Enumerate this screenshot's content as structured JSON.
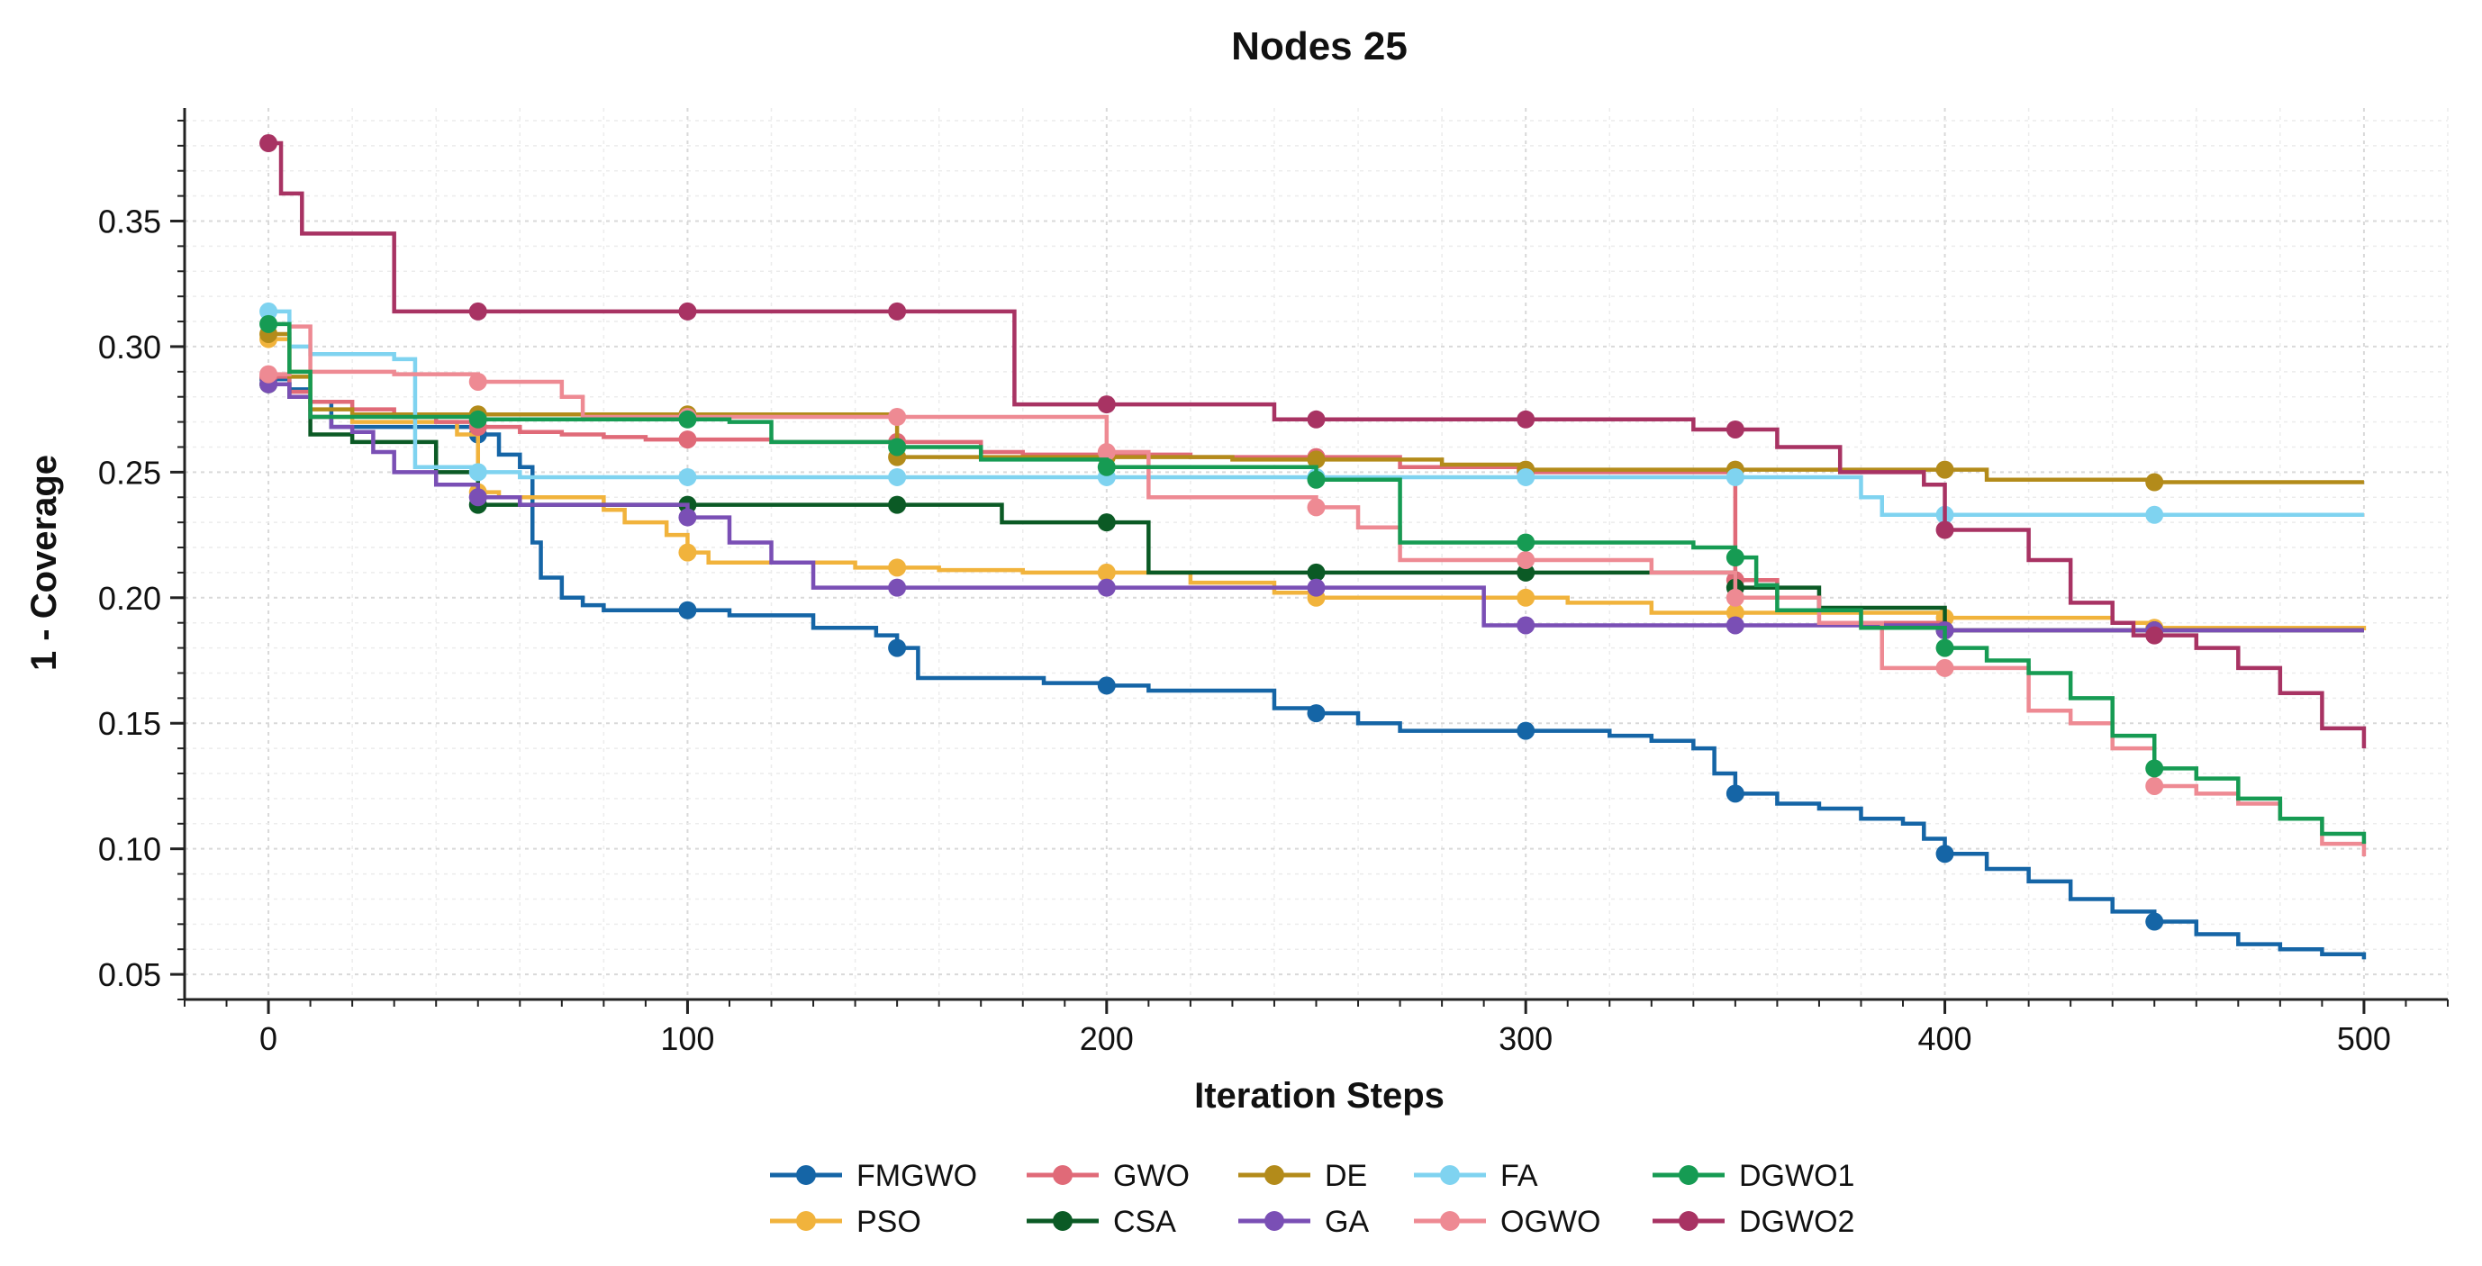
{
  "chart_data": {
    "type": "line",
    "title": "Nodes 25",
    "xlabel": "Iteration Steps",
    "ylabel": "1 - Coverage",
    "xlim": [
      -20,
      520
    ],
    "ylim": [
      0.04,
      0.395
    ],
    "xticks": [
      0,
      100,
      200,
      300,
      400,
      500
    ],
    "xtick_labels": [
      "0",
      "100",
      "200",
      "300",
      "400",
      "500"
    ],
    "yticks": [
      0.05,
      0.1,
      0.15,
      0.2,
      0.25,
      0.3,
      0.35
    ],
    "ytick_labels": [
      "0.05",
      "0.10",
      "0.15",
      "0.20",
      "0.25",
      "0.30",
      "0.35"
    ],
    "grid": true,
    "step": true,
    "marker_every": 50,
    "legend_position": "bottom-center",
    "series": [
      {
        "name": "FMGWO",
        "color": "#1565a6",
        "x": [
          0,
          5,
          10,
          15,
          50,
          55,
          60,
          63,
          65,
          70,
          75,
          80,
          90,
          100,
          110,
          120,
          130,
          140,
          145,
          150,
          155,
          170,
          185,
          200,
          210,
          225,
          240,
          250,
          260,
          270,
          300,
          320,
          330,
          340,
          345,
          350,
          360,
          370,
          380,
          390,
          395,
          400,
          410,
          420,
          430,
          440,
          450,
          460,
          470,
          480,
          490,
          500
        ],
        "y": [
          0.287,
          0.283,
          0.278,
          0.268,
          0.265,
          0.257,
          0.252,
          0.222,
          0.208,
          0.2,
          0.197,
          0.195,
          0.195,
          0.195,
          0.193,
          0.193,
          0.188,
          0.188,
          0.185,
          0.18,
          0.168,
          0.168,
          0.166,
          0.165,
          0.163,
          0.163,
          0.156,
          0.154,
          0.15,
          0.147,
          0.147,
          0.145,
          0.143,
          0.14,
          0.13,
          0.122,
          0.118,
          0.116,
          0.112,
          0.11,
          0.104,
          0.098,
          0.092,
          0.087,
          0.08,
          0.075,
          0.071,
          0.066,
          0.062,
          0.06,
          0.058,
          0.056
        ]
      },
      {
        "name": "PSO",
        "color": "#f1b33c",
        "x": [
          0,
          5,
          10,
          20,
          45,
          50,
          55,
          70,
          80,
          85,
          95,
          100,
          105,
          120,
          140,
          150,
          160,
          180,
          195,
          200,
          220,
          240,
          250,
          260,
          290,
          300,
          310,
          330,
          380,
          400,
          440,
          450,
          470,
          500
        ],
        "y": [
          0.303,
          0.29,
          0.272,
          0.27,
          0.265,
          0.242,
          0.24,
          0.24,
          0.235,
          0.23,
          0.225,
          0.218,
          0.214,
          0.214,
          0.212,
          0.212,
          0.211,
          0.21,
          0.21,
          0.21,
          0.206,
          0.202,
          0.2,
          0.2,
          0.2,
          0.2,
          0.198,
          0.194,
          0.194,
          0.192,
          0.19,
          0.188,
          0.188,
          0.187
        ]
      },
      {
        "name": "GWO",
        "color": "#e06a78",
        "x": [
          0,
          5,
          10,
          20,
          30,
          40,
          50,
          60,
          70,
          80,
          90,
          100,
          120,
          140,
          150,
          170,
          180,
          200,
          220,
          250,
          270,
          300,
          350,
          360,
          370,
          380,
          400,
          450,
          480,
          500
        ],
        "y": [
          0.288,
          0.282,
          0.278,
          0.275,
          0.272,
          0.27,
          0.268,
          0.266,
          0.265,
          0.264,
          0.263,
          0.263,
          0.262,
          0.262,
          0.262,
          0.258,
          0.257,
          0.257,
          0.256,
          0.256,
          0.252,
          0.25,
          0.207,
          0.2,
          0.195,
          0.19,
          0.187,
          0.187,
          0.187,
          0.187
        ]
      },
      {
        "name": "CSA",
        "color": "#0b5a25",
        "x": [
          0,
          5,
          10,
          20,
          40,
          50,
          55,
          70,
          100,
          120,
          150,
          160,
          175,
          200,
          210,
          225,
          250,
          280,
          300,
          330,
          350,
          370,
          400,
          450,
          500
        ],
        "y": [
          0.285,
          0.28,
          0.265,
          0.262,
          0.25,
          0.237,
          0.237,
          0.237,
          0.237,
          0.237,
          0.237,
          0.237,
          0.23,
          0.23,
          0.21,
          0.21,
          0.21,
          0.21,
          0.21,
          0.21,
          0.204,
          0.196,
          0.187,
          0.187,
          0.187
        ]
      },
      {
        "name": "DE",
        "color": "#b38b1a",
        "x": [
          0,
          5,
          10,
          20,
          50,
          100,
          150,
          170,
          200,
          230,
          250,
          280,
          300,
          330,
          350,
          390,
          400,
          410,
          440,
          450,
          470,
          500
        ],
        "y": [
          0.305,
          0.288,
          0.275,
          0.273,
          0.273,
          0.273,
          0.256,
          0.256,
          0.256,
          0.255,
          0.255,
          0.253,
          0.251,
          0.251,
          0.251,
          0.251,
          0.251,
          0.247,
          0.247,
          0.246,
          0.246,
          0.246
        ]
      },
      {
        "name": "GA",
        "color": "#7a4fb5",
        "x": [
          0,
          5,
          10,
          15,
          20,
          25,
          30,
          40,
          50,
          60,
          80,
          100,
          110,
          120,
          130,
          150,
          180,
          200,
          250,
          280,
          290,
          300,
          340,
          350,
          400,
          450,
          500
        ],
        "y": [
          0.285,
          0.28,
          0.272,
          0.268,
          0.266,
          0.258,
          0.25,
          0.245,
          0.24,
          0.237,
          0.237,
          0.232,
          0.222,
          0.214,
          0.204,
          0.204,
          0.204,
          0.204,
          0.204,
          0.204,
          0.189,
          0.189,
          0.189,
          0.189,
          0.187,
          0.187,
          0.187
        ]
      },
      {
        "name": "FA",
        "color": "#7fd3f0",
        "x": [
          0,
          5,
          10,
          20,
          30,
          35,
          40,
          50,
          60,
          100,
          150,
          200,
          250,
          300,
          350,
          380,
          385,
          400,
          450,
          500
        ],
        "y": [
          0.314,
          0.3,
          0.297,
          0.297,
          0.295,
          0.252,
          0.252,
          0.25,
          0.248,
          0.248,
          0.248,
          0.248,
          0.248,
          0.248,
          0.248,
          0.24,
          0.233,
          0.233,
          0.233,
          0.233
        ]
      },
      {
        "name": "OGWO",
        "color": "#ee8a93",
        "x": [
          0,
          5,
          10,
          30,
          50,
          60,
          70,
          75,
          100,
          150,
          200,
          210,
          240,
          250,
          260,
          270,
          300,
          330,
          350,
          370,
          385,
          400,
          410,
          420,
          430,
          440,
          450,
          460,
          470,
          480,
          490,
          500
        ],
        "y": [
          0.289,
          0.308,
          0.29,
          0.289,
          0.286,
          0.286,
          0.28,
          0.272,
          0.272,
          0.272,
          0.258,
          0.24,
          0.24,
          0.236,
          0.228,
          0.215,
          0.215,
          0.21,
          0.2,
          0.19,
          0.172,
          0.172,
          0.172,
          0.155,
          0.15,
          0.14,
          0.125,
          0.122,
          0.118,
          0.112,
          0.102,
          0.097
        ]
      },
      {
        "name": "DGWO1",
        "color": "#169b53",
        "x": [
          0,
          5,
          10,
          50,
          100,
          110,
          120,
          150,
          170,
          200,
          250,
          270,
          300,
          340,
          350,
          355,
          360,
          380,
          400,
          410,
          420,
          430,
          440,
          450,
          460,
          470,
          480,
          490,
          500
        ],
        "y": [
          0.309,
          0.29,
          0.272,
          0.271,
          0.271,
          0.27,
          0.262,
          0.26,
          0.255,
          0.252,
          0.247,
          0.222,
          0.222,
          0.22,
          0.216,
          0.205,
          0.195,
          0.188,
          0.18,
          0.175,
          0.17,
          0.16,
          0.145,
          0.132,
          0.128,
          0.12,
          0.112,
          0.106,
          0.102
        ]
      },
      {
        "name": "DGWO2",
        "color": "#a83363",
        "x": [
          0,
          3,
          8,
          30,
          50,
          100,
          150,
          178,
          200,
          240,
          250,
          300,
          340,
          350,
          360,
          375,
          395,
          400,
          420,
          430,
          440,
          445,
          450,
          460,
          470,
          480,
          490,
          500
        ],
        "y": [
          0.381,
          0.361,
          0.345,
          0.314,
          0.314,
          0.314,
          0.314,
          0.277,
          0.277,
          0.271,
          0.271,
          0.271,
          0.267,
          0.267,
          0.26,
          0.25,
          0.245,
          0.227,
          0.215,
          0.198,
          0.19,
          0.185,
          0.185,
          0.18,
          0.172,
          0.162,
          0.148,
          0.14
        ]
      }
    ]
  }
}
